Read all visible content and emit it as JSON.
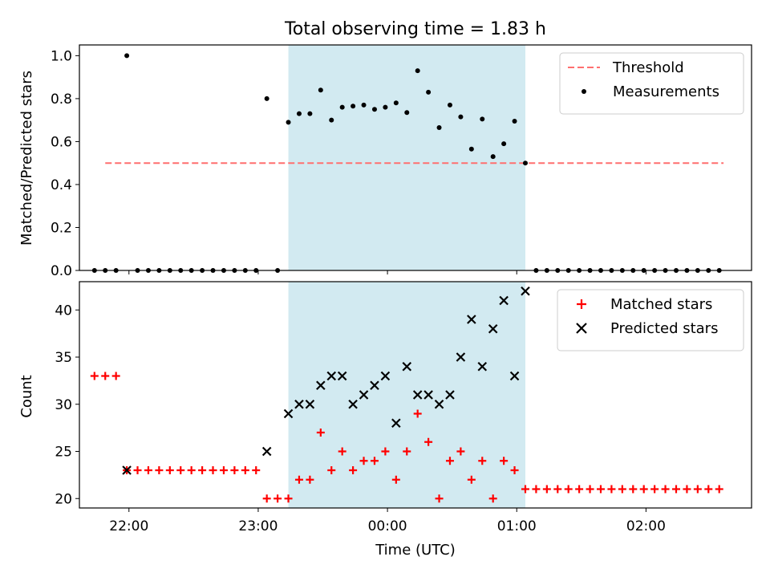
{
  "title": "Total observing time = 1.83 h",
  "xlabel": "Time (UTC)",
  "x_tick_labels": [
    "22:00",
    "23:00",
    "00:00",
    "01:00",
    "02:00"
  ],
  "colors": {
    "shade": "#add8e6",
    "threshold": "#ff6f6f",
    "measurement": "#000000",
    "matched": "#ff0000",
    "predicted": "#000000"
  },
  "chart_data": [
    {
      "type": "scatter",
      "name": "ratio-panel",
      "ylabel": "Matched/Predicted stars",
      "ylim": [
        0,
        1.05
      ],
      "yticks": [
        0.0,
        0.2,
        0.4,
        0.6,
        0.8,
        1.0
      ],
      "y_tick_labels": [
        "0.0",
        "0.2",
        "0.4",
        "0.6",
        "0.8",
        "1.0"
      ],
      "xlim": [
        "21:37",
        "02:49"
      ],
      "x_ticks": [
        "22:00",
        "23:00",
        "00:00",
        "01:00",
        "02:00"
      ],
      "shaded_interval": [
        "23:14",
        "01:04"
      ],
      "legend_position": "top-right",
      "threshold": {
        "name": "Threshold",
        "style": "dashed",
        "y": 0.5,
        "x_range": [
          "21:49",
          "02:36"
        ]
      },
      "series": [
        {
          "name": "Measurements",
          "marker": "dot",
          "x": [
            "21:44",
            "21:49",
            "21:54",
            "21:59",
            "22:04",
            "22:09",
            "22:14",
            "22:19",
            "22:24",
            "22:29",
            "22:34",
            "22:39",
            "22:44",
            "22:49",
            "22:54",
            "22:59",
            "23:04",
            "23:09",
            "23:14",
            "23:19",
            "23:24",
            "23:29",
            "23:34",
            "23:39",
            "23:44",
            "23:49",
            "23:54",
            "23:59",
            "00:04",
            "00:09",
            "00:14",
            "00:19",
            "00:24",
            "00:29",
            "00:34",
            "00:39",
            "00:44",
            "00:49",
            "00:54",
            "00:59",
            "01:04",
            "01:09",
            "01:14",
            "01:19",
            "01:24",
            "01:29",
            "01:34",
            "01:39",
            "01:44",
            "01:49",
            "01:54",
            "01:59",
            "02:04",
            "02:09",
            "02:14",
            "02:19",
            "02:24",
            "02:29",
            "02:34"
          ],
          "y": [
            0.0,
            0.0,
            0.0,
            1.0,
            0.0,
            0.0,
            0.0,
            0.0,
            0.0,
            0.0,
            0.0,
            0.0,
            0.0,
            0.0,
            0.0,
            0.0,
            0.8,
            0.0,
            0.69,
            0.73,
            0.73,
            0.84,
            0.7,
            0.76,
            0.765,
            0.77,
            0.75,
            0.76,
            0.78,
            0.735,
            0.93,
            0.83,
            0.665,
            0.77,
            0.715,
            0.565,
            0.705,
            0.53,
            0.59,
            0.695,
            0.5,
            0.0,
            0.0,
            0.0,
            0.0,
            0.0,
            0.0,
            0.0,
            0.0,
            0.0,
            0.0,
            0.0,
            0.0,
            0.0,
            0.0,
            0.0,
            0.0,
            0.0,
            0.0
          ]
        }
      ]
    },
    {
      "type": "scatter",
      "name": "count-panel",
      "ylabel": "Count",
      "ylim": [
        19,
        43
      ],
      "yticks": [
        20,
        25,
        30,
        35,
        40
      ],
      "y_tick_labels": [
        "20",
        "25",
        "30",
        "35",
        "40"
      ],
      "xlim": [
        "21:37",
        "02:49"
      ],
      "x_ticks": [
        "22:00",
        "23:00",
        "00:00",
        "01:00",
        "02:00"
      ],
      "shaded_interval": [
        "23:14",
        "01:04"
      ],
      "legend_position": "top-right",
      "series": [
        {
          "name": "Matched stars",
          "marker": "plus",
          "x": [
            "21:44",
            "21:49",
            "21:54",
            "21:59",
            "22:04",
            "22:09",
            "22:14",
            "22:19",
            "22:24",
            "22:29",
            "22:34",
            "22:39",
            "22:44",
            "22:49",
            "22:54",
            "22:59",
            "23:04",
            "23:09",
            "23:14",
            "23:19",
            "23:24",
            "23:29",
            "23:34",
            "23:39",
            "23:44",
            "23:49",
            "23:54",
            "23:59",
            "00:04",
            "00:09",
            "00:14",
            "00:19",
            "00:24",
            "00:29",
            "00:34",
            "00:39",
            "00:44",
            "00:49",
            "00:54",
            "00:59",
            "01:04",
            "01:09",
            "01:14",
            "01:19",
            "01:24",
            "01:29",
            "01:34",
            "01:39",
            "01:44",
            "01:49",
            "01:54",
            "01:59",
            "02:04",
            "02:09",
            "02:14",
            "02:19",
            "02:24",
            "02:29",
            "02:34"
          ],
          "y": [
            33,
            33,
            33,
            23,
            23,
            23,
            23,
            23,
            23,
            23,
            23,
            23,
            23,
            23,
            23,
            23,
            20,
            20,
            20,
            22,
            22,
            27,
            23,
            25,
            23,
            24,
            24,
            25,
            22,
            25,
            29,
            26,
            20,
            24,
            25,
            22,
            24,
            20,
            24,
            23,
            21,
            21,
            21,
            21,
            21,
            21,
            21,
            21,
            21,
            21,
            21,
            21,
            21,
            21,
            21,
            21,
            21,
            21,
            21
          ]
        },
        {
          "name": "Predicted stars",
          "marker": "x",
          "x": [
            "21:59",
            "23:04",
            "23:14",
            "23:19",
            "23:24",
            "23:29",
            "23:34",
            "23:39",
            "23:44",
            "23:49",
            "23:54",
            "23:59",
            "00:04",
            "00:09",
            "00:14",
            "00:19",
            "00:24",
            "00:29",
            "00:34",
            "00:39",
            "00:44",
            "00:49",
            "00:54",
            "00:59",
            "01:04"
          ],
          "y": [
            23,
            25,
            29,
            30,
            30,
            32,
            33,
            33,
            30,
            31,
            32,
            33,
            28,
            34,
            31,
            31,
            30,
            31,
            35,
            39,
            34,
            38,
            41,
            33,
            42
          ]
        }
      ]
    }
  ]
}
